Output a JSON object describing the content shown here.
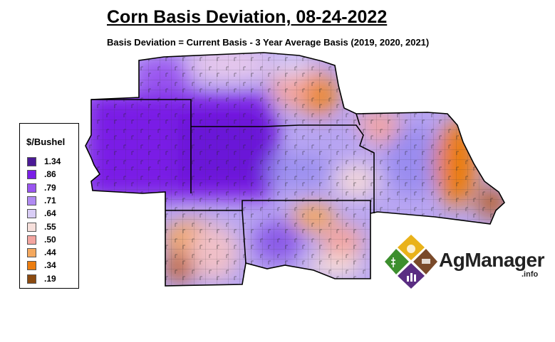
{
  "header": {
    "title": "Corn Basis Deviation, 08-24-2022",
    "subtitle": "Basis Deviation = Current Basis - 3 Year Average Basis (2019, 2020, 2021)"
  },
  "legend": {
    "title": "$/Bushel",
    "items": [
      {
        "label": "1.34",
        "color": "#4b1a96"
      },
      {
        "label": ".86",
        "color": "#7a1ee6"
      },
      {
        "label": ".79",
        "color": "#9a55f0"
      },
      {
        "label": ".71",
        "color": "#b08af2"
      },
      {
        "label": ".64",
        "color": "#d9cdf6"
      },
      {
        "label": ".55",
        "color": "#f7e0dc"
      },
      {
        "label": ".50",
        "color": "#f3a5a0"
      },
      {
        "label": ".44",
        "color": "#f4a85e"
      },
      {
        "label": ".34",
        "color": "#ec7d10"
      },
      {
        "label": ".19",
        "color": "#8b4a10"
      }
    ]
  },
  "logo": {
    "name": "AgManager",
    "suffix": ".info"
  }
}
